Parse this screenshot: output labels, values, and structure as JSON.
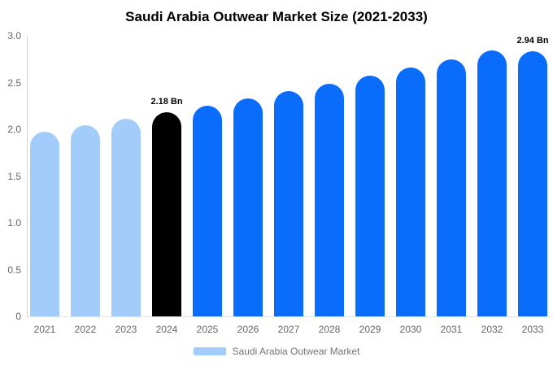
{
  "title": "Saudi Arabia Outwear Market Size (2021-2033)",
  "legend": {
    "label": "Saudi Arabia Outwear Market",
    "color": "#A2CDFA"
  },
  "colors": {
    "historical": "#A2CDFA",
    "highlight": "#000000",
    "forecast": "#0A6CFB",
    "axis_line": "#D6D6D6",
    "tick_text": "#666666"
  },
  "chart_data": {
    "type": "bar",
    "title": "Saudi Arabia Outwear Market Size (2021-2033)",
    "categories": [
      "2021",
      "2022",
      "2023",
      "2024",
      "2025",
      "2026",
      "2027",
      "2028",
      "2029",
      "2030",
      "2031",
      "2032",
      "2033"
    ],
    "values": [
      1.97,
      2.04,
      2.11,
      2.18,
      2.25,
      2.33,
      2.41,
      2.49,
      2.57,
      2.66,
      2.75,
      2.84,
      2.94
    ],
    "unit": "Bn",
    "point_styles": [
      "historical",
      "historical",
      "historical",
      "highlight",
      "forecast",
      "forecast",
      "forecast",
      "forecast",
      "forecast",
      "forecast",
      "forecast",
      "forecast",
      "forecast"
    ],
    "data_labels": [
      null,
      null,
      null,
      "2.18 Bn",
      null,
      null,
      null,
      null,
      null,
      null,
      null,
      null,
      "2.94 Bn"
    ],
    "xlabel": "",
    "ylabel": "",
    "ylim": [
      0,
      3.0
    ],
    "yticks": [
      "3.0",
      "2.5",
      "2.0",
      "1.5",
      "1.0",
      "0.5",
      "0"
    ],
    "grid": false,
    "legend_position": "bottom",
    "legend_entries": [
      "Saudi Arabia Outwear Market"
    ]
  }
}
